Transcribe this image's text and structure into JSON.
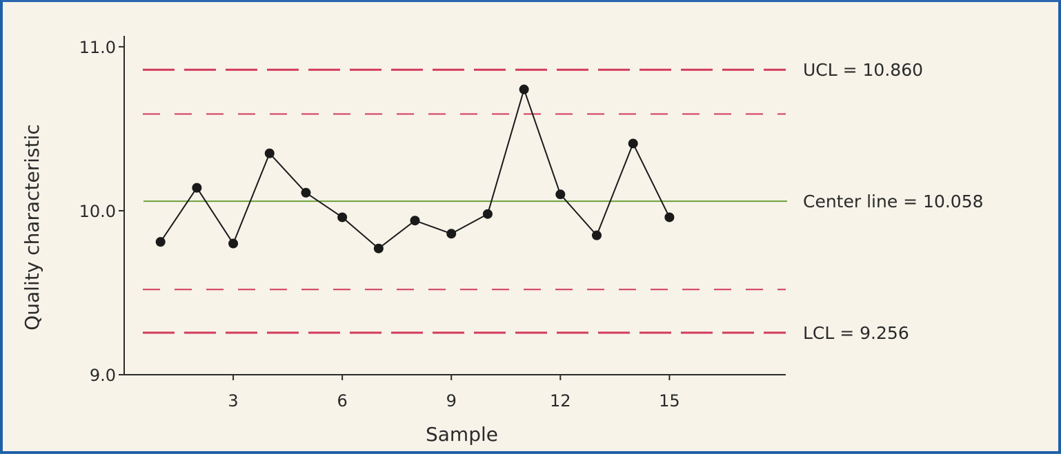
{
  "chart_data": {
    "type": "line",
    "xlabel": "Sample",
    "ylabel": "Quality characteristic",
    "xlim": [
      0,
      18.2
    ],
    "ylim": [
      9.0,
      11.05
    ],
    "x_ticks": [
      3,
      6,
      9,
      12,
      15
    ],
    "y_ticks": [
      9.0,
      10.0,
      11.0
    ],
    "x_tick_labels": [
      "3",
      "6",
      "9",
      "12",
      "15"
    ],
    "y_tick_labels": [
      "9.0",
      "10.0",
      "11.0"
    ],
    "grid": false,
    "series": [
      {
        "x": [
          1,
          2,
          3,
          4,
          5,
          6,
          7,
          8,
          9,
          10,
          11,
          12,
          13,
          14,
          15
        ],
        "values": [
          9.81,
          10.14,
          9.8,
          10.35,
          10.11,
          9.96,
          9.77,
          9.94,
          9.86,
          9.98,
          10.74,
          10.1,
          9.85,
          10.41,
          9.96
        ],
        "color": "#1a1a1a"
      }
    ],
    "reference_lines": [
      {
        "label": "UCL = 10.860",
        "value": 10.86,
        "color": "#d33a5a",
        "style": "long-dash"
      },
      {
        "label": "",
        "value": 10.59,
        "color": "#d33a5a",
        "style": "short-dash"
      },
      {
        "label": "Center line = 10.058",
        "value": 10.058,
        "color": "#6aa03a",
        "style": "solid"
      },
      {
        "label": "",
        "value": 9.52,
        "color": "#d33a5a",
        "style": "short-dash"
      },
      {
        "label": "LCL = 9.256",
        "value": 9.256,
        "color": "#d33a5a",
        "style": "long-dash"
      }
    ],
    "colors": {
      "axis": "#2a2a2a",
      "background": "#f7f3e9",
      "border": "#1f5fa8"
    }
  }
}
